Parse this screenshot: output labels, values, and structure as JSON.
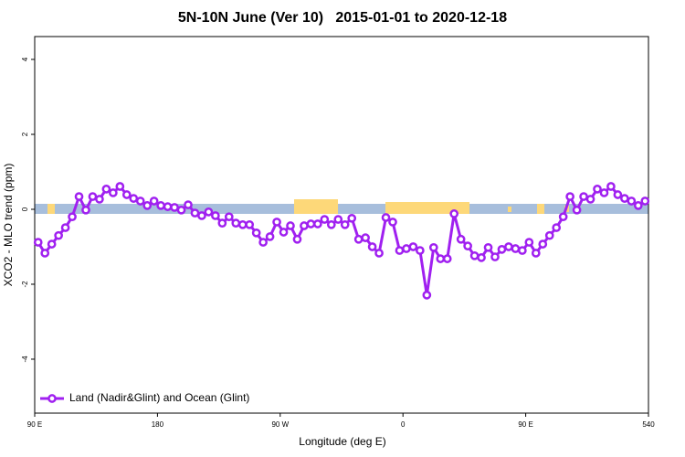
{
  "chart_data": {
    "type": "line",
    "title": "5N-10N June (Ver 10)   2015-01-01 to 2020-12-18",
    "x_label": "Longitude (deg E)",
    "y_label": "XCO2 - MLO trend (ppm)",
    "x": [
      92.5,
      97.5,
      102.5,
      107.5,
      112.5,
      117.5,
      122.5,
      127.5,
      132.5,
      137.5,
      142.5,
      147.5,
      152.5,
      157.5,
      162.5,
      167.5,
      172.5,
      177.5,
      182.5,
      187.5,
      192.5,
      197.5,
      202.5,
      207.5,
      212.5,
      217.5,
      222.5,
      227.5,
      232.5,
      237.5,
      242.5,
      247.5,
      252.5,
      257.5,
      262.5,
      267.5,
      272.5,
      277.5,
      282.5,
      287.5,
      292.5,
      297.5,
      302.5,
      307.5,
      312.5,
      317.5,
      322.5,
      327.5,
      332.5,
      337.5,
      342.5,
      347.5,
      352.5,
      357.5,
      362.5,
      367.5,
      372.5,
      377.5,
      382.5,
      387.5,
      392.5,
      397.5,
      402.5,
      407.5,
      412.5,
      417.5,
      422.5,
      427.5,
      432.5,
      437.5,
      442.5,
      447.5,
      452.5,
      457.5,
      462.5,
      467.5,
      472.5,
      477.5,
      482.5,
      487.5,
      492.5,
      497.5,
      502.5,
      507.5,
      512.5,
      517.5,
      522.5,
      527.5,
      532.5,
      537.5
    ],
    "series": [
      {
        "name": "Land (Nadir&Glint) and Ocean (Glint)",
        "color": "#a020f0",
        "values": [
          -0.88,
          -1.17,
          -0.93,
          -0.7,
          -0.49,
          -0.2,
          0.34,
          -0.02,
          0.34,
          0.27,
          0.54,
          0.44,
          0.61,
          0.39,
          0.29,
          0.22,
          0.1,
          0.22,
          0.1,
          0.07,
          0.05,
          -0.02,
          0.12,
          -0.1,
          -0.17,
          -0.07,
          -0.17,
          -0.37,
          -0.2,
          -0.37,
          -0.41,
          -0.41,
          -0.63,
          -0.88,
          -0.73,
          -0.34,
          -0.61,
          -0.44,
          -0.8,
          -0.44,
          -0.39,
          -0.39,
          -0.27,
          -0.41,
          -0.27,
          -0.41,
          -0.24,
          -0.8,
          -0.76,
          -1.0,
          -1.17,
          -0.22,
          -0.34,
          -1.1,
          -1.05,
          -1.0,
          -1.1,
          -2.29,
          -1.02,
          -1.32,
          -1.32,
          -0.12,
          -0.8,
          -0.98,
          -1.24,
          -1.29,
          -1.02,
          -1.27,
          -1.07,
          -1.0,
          -1.05,
          -1.1,
          -0.88,
          -1.17,
          -0.93,
          -0.7,
          -0.49,
          -0.2,
          0.34,
          -0.02,
          0.34,
          0.27,
          0.54,
          0.44,
          0.61,
          0.39,
          0.29,
          0.22,
          0.1,
          0.22
        ]
      }
    ],
    "xlim": [
      90,
      540
    ],
    "xticks": [
      {
        "value": 90,
        "label": "90 E"
      },
      180,
      {
        "value": 270,
        "label": "90 W"
      },
      {
        "value": 360,
        "label": "0"
      },
      {
        "value": 450,
        "label": "90 E"
      },
      540
    ],
    "ylim": [
      -5.44,
      4.61
    ],
    "yticks": [
      -4,
      -2,
      0,
      2,
      4
    ],
    "legend": "bottomleft"
  }
}
